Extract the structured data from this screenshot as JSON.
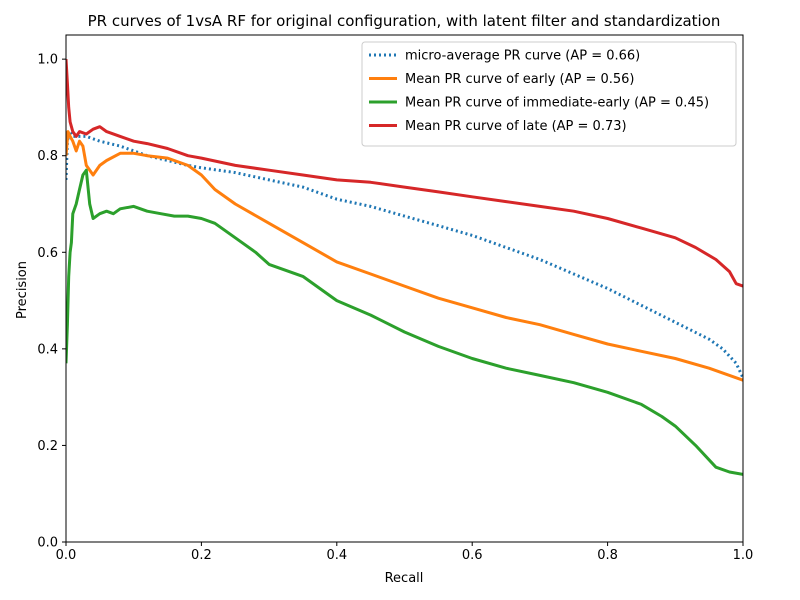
{
  "chart_data": {
    "type": "line",
    "title": "PR curves of 1vsA RF for original configuration, with latent filter and standardization",
    "xlabel": "Recall",
    "ylabel": "Precision",
    "xlim": [
      0,
      1
    ],
    "ylim": [
      0,
      1.05
    ],
    "x_ticks": [
      "0.0",
      "0.2",
      "0.4",
      "0.6",
      "0.8",
      "1.0"
    ],
    "y_ticks": [
      "0.0",
      "0.2",
      "0.4",
      "0.6",
      "0.8",
      "1.0"
    ],
    "grid": false,
    "legend_position": "top-right",
    "series": [
      {
        "name": "micro-average PR curve (AP = 0.66)",
        "color": "#1f77b4",
        "style": "dotted",
        "x": [
          0.0,
          0.002,
          0.005,
          0.01,
          0.02,
          0.03,
          0.05,
          0.08,
          0.1,
          0.12,
          0.15,
          0.18,
          0.2,
          0.25,
          0.3,
          0.35,
          0.4,
          0.45,
          0.5,
          0.55,
          0.6,
          0.65,
          0.7,
          0.75,
          0.8,
          0.85,
          0.9,
          0.95,
          0.97,
          0.99,
          1.0
        ],
        "y": [
          0.75,
          0.83,
          0.85,
          0.84,
          0.84,
          0.84,
          0.83,
          0.82,
          0.81,
          0.8,
          0.79,
          0.78,
          0.775,
          0.765,
          0.75,
          0.735,
          0.71,
          0.695,
          0.675,
          0.655,
          0.635,
          0.61,
          0.585,
          0.555,
          0.525,
          0.49,
          0.455,
          0.42,
          0.4,
          0.37,
          0.34
        ]
      },
      {
        "name": "Mean PR curve of early (AP = 0.56)",
        "color": "#ff7f0e",
        "style": "solid",
        "x": [
          0.0,
          0.003,
          0.006,
          0.01,
          0.015,
          0.02,
          0.025,
          0.03,
          0.04,
          0.05,
          0.06,
          0.08,
          0.1,
          0.12,
          0.15,
          0.18,
          0.2,
          0.22,
          0.25,
          0.3,
          0.35,
          0.4,
          0.45,
          0.5,
          0.55,
          0.6,
          0.65,
          0.7,
          0.75,
          0.8,
          0.85,
          0.9,
          0.95,
          1.0
        ],
        "y": [
          0.8,
          0.85,
          0.84,
          0.83,
          0.81,
          0.83,
          0.82,
          0.78,
          0.76,
          0.78,
          0.79,
          0.805,
          0.805,
          0.8,
          0.795,
          0.78,
          0.76,
          0.73,
          0.7,
          0.66,
          0.62,
          0.58,
          0.555,
          0.53,
          0.505,
          0.485,
          0.465,
          0.45,
          0.43,
          0.41,
          0.395,
          0.38,
          0.36,
          0.335
        ]
      },
      {
        "name": "Mean PR curve of immediate-early (AP = 0.45)",
        "color": "#2ca02c",
        "style": "solid",
        "x": [
          0.0,
          0.002,
          0.004,
          0.006,
          0.008,
          0.01,
          0.015,
          0.02,
          0.025,
          0.03,
          0.035,
          0.04,
          0.05,
          0.06,
          0.07,
          0.08,
          0.1,
          0.12,
          0.14,
          0.16,
          0.18,
          0.2,
          0.22,
          0.25,
          0.28,
          0.3,
          0.35,
          0.4,
          0.45,
          0.5,
          0.55,
          0.6,
          0.65,
          0.7,
          0.75,
          0.8,
          0.85,
          0.88,
          0.9,
          0.93,
          0.96,
          0.98,
          1.0
        ],
        "y": [
          0.37,
          0.45,
          0.55,
          0.6,
          0.62,
          0.68,
          0.7,
          0.73,
          0.76,
          0.77,
          0.7,
          0.67,
          0.68,
          0.685,
          0.68,
          0.69,
          0.695,
          0.685,
          0.68,
          0.675,
          0.675,
          0.67,
          0.66,
          0.63,
          0.6,
          0.575,
          0.55,
          0.5,
          0.47,
          0.435,
          0.405,
          0.38,
          0.36,
          0.345,
          0.33,
          0.31,
          0.285,
          0.26,
          0.24,
          0.2,
          0.155,
          0.145,
          0.14
        ]
      },
      {
        "name": "Mean PR curve of late (AP = 0.73)",
        "color": "#d62728",
        "style": "solid",
        "x": [
          0.0,
          0.002,
          0.004,
          0.006,
          0.01,
          0.015,
          0.02,
          0.03,
          0.04,
          0.05,
          0.06,
          0.08,
          0.1,
          0.12,
          0.15,
          0.18,
          0.2,
          0.25,
          0.3,
          0.35,
          0.4,
          0.45,
          0.5,
          0.55,
          0.6,
          0.65,
          0.7,
          0.75,
          0.8,
          0.85,
          0.9,
          0.93,
          0.96,
          0.98,
          0.99,
          1.0
        ],
        "y": [
          1.0,
          0.95,
          0.9,
          0.87,
          0.85,
          0.84,
          0.85,
          0.845,
          0.855,
          0.86,
          0.85,
          0.84,
          0.83,
          0.825,
          0.815,
          0.8,
          0.795,
          0.78,
          0.77,
          0.76,
          0.75,
          0.745,
          0.735,
          0.725,
          0.715,
          0.705,
          0.695,
          0.685,
          0.67,
          0.65,
          0.63,
          0.61,
          0.585,
          0.56,
          0.535,
          0.53
        ]
      }
    ]
  }
}
